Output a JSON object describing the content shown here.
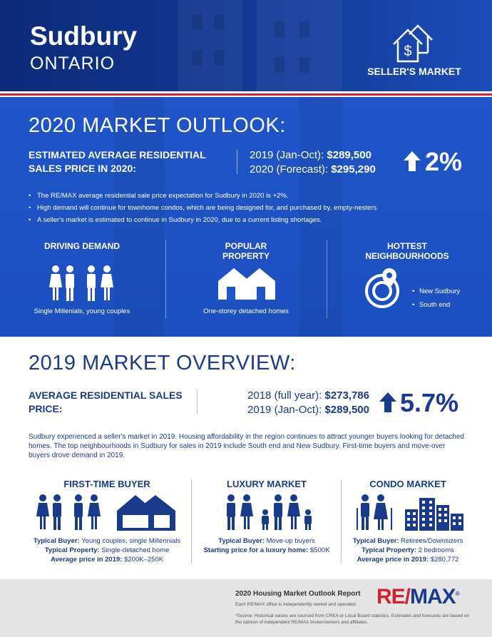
{
  "header": {
    "city": "Sudbury",
    "province": "ONTARIO",
    "market_badge": "SELLER'S MARKET",
    "badge_icon": "house-dollar-icon"
  },
  "outlook": {
    "title": "2020 MARKET OUTLOOK:",
    "label": "ESTIMATED AVERAGE RESIDENTIAL SALES PRICE IN 2020:",
    "line1_label": "2019 (Jan-Oct):",
    "line1_value": "$289,500",
    "line2_label": "2020 (Forecast):",
    "line2_value": "$295,290",
    "change": "2%",
    "bullets": [
      "The RE/MAX average residential sale price expectation for Sudbury in 2020 is +2%.",
      "High demand will continue for townhome condos, which are being designed for, and purchased by, empty-nesters.",
      "A seller's market is estimated to continue in Sudbury in 2020, due to a current listing shortages."
    ],
    "driving_title": "DRIVING DEMAND",
    "driving_caption": "Single Millenials, young couples",
    "popular_title": "POPULAR PROPERTY",
    "popular_caption": "One-storey detached homes",
    "hottest_title": "HOTTEST NEIGHBOURHOODS",
    "hoods": [
      "New Sudbury",
      "South end"
    ]
  },
  "overview": {
    "title": "2019 MARKET OVERVIEW:",
    "label": "AVERAGE RESIDENTIAL SALES PRICE:",
    "line1_label": "2018 (full year):",
    "line1_value": "$273,786",
    "line2_label": "2019 (Jan-Oct):",
    "line2_value": "$289,500",
    "change": "5.7%",
    "paragraph": "Sudbury experienced a seller's market in 2019. Housing affordability in the region continues to attract younger buyers looking for detached homes. The top neighbourhoods in Sudbury for sales in 2019 include South end and New Sudbury. First-time buyers and move-over buyers drove demand in 2019."
  },
  "markets": {
    "first_time": {
      "title": "FIRST-TIME BUYER",
      "buyer_label": "Typical Buyer:",
      "buyer_value": "Young couples, single Millennials",
      "property_label": "Typical Property:",
      "property_value": "Single-detached home",
      "price_label": "Average price in 2019:",
      "price_value": "$200K–250K"
    },
    "luxury": {
      "title": "LUXURY MARKET",
      "buyer_label": "Typical Buyer:",
      "buyer_value": "Move-up buyers",
      "start_label": "Starting price for a luxury home:",
      "start_value": "$500K"
    },
    "condo": {
      "title": "CONDO MARKET",
      "buyer_label": "Typical Buyer:",
      "buyer_value": "Retirees/Downsizers",
      "property_label": "Typical Property:",
      "property_value": "2 bedrooms",
      "price_label": "Average price in 2019:",
      "price_value": "$280,772"
    }
  },
  "footer": {
    "report_title": "2020 Housing Market Outlook Report",
    "independent": "Each RE/MAX office is independently owned and operated.",
    "source": "*Source: Historical values are sourced from CREA or Local Board statistics. Estimates and forecasts are based on the opinion of independent RE/MAX broker/owners and affiliates.",
    "logo_text_a": "RE/",
    "logo_text_b": "MAX",
    "logo_mark": "®"
  },
  "colors": {
    "navy": "#1a3a8c",
    "blue": "#1f55c9",
    "red": "#d6202e"
  }
}
